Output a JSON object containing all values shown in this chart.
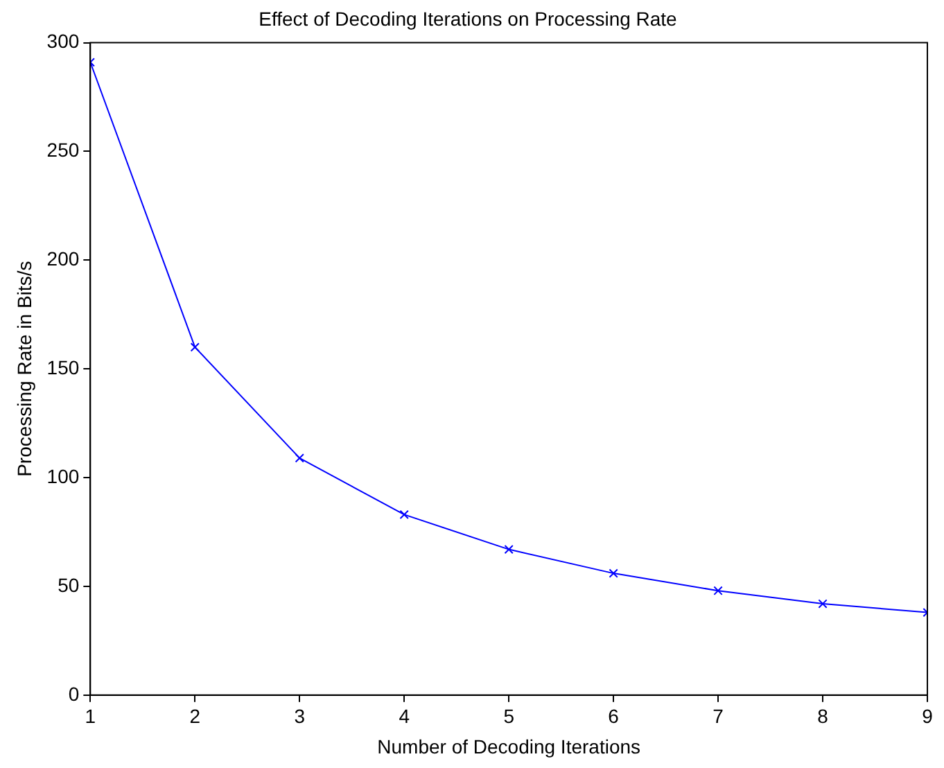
{
  "chart_data": {
    "type": "line",
    "title": "Effect of Decoding Iterations on Processing Rate",
    "xlabel": "Number of Decoding Iterations",
    "ylabel": "Processing Rate in Bits/s",
    "x": [
      1,
      2,
      3,
      4,
      5,
      6,
      7,
      8,
      9
    ],
    "series": [
      {
        "color": "#0000ff",
        "values": [
          291,
          160,
          109,
          83,
          67,
          56,
          48,
          42,
          38
        ]
      }
    ],
    "xlim": [
      1,
      9
    ],
    "xticks": [
      1,
      2,
      3,
      4,
      5,
      6,
      7,
      8,
      9
    ],
    "ylim": [
      0,
      300
    ],
    "yticks": [
      0,
      50,
      100,
      150,
      200,
      250,
      300
    ],
    "grid": false,
    "legend": false,
    "marker": "cross",
    "line_style": "solid"
  }
}
